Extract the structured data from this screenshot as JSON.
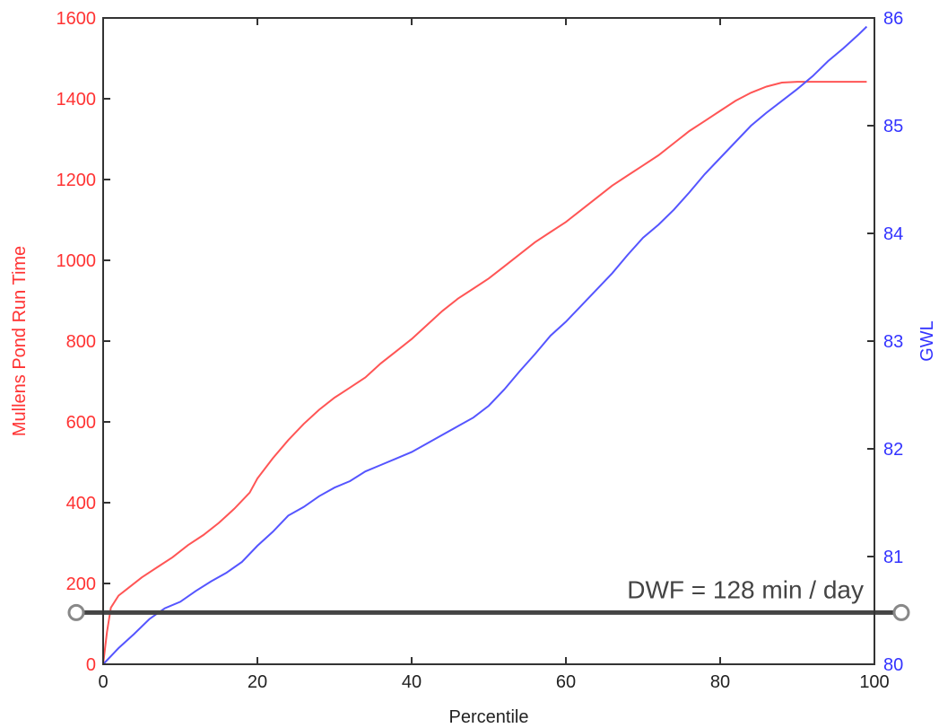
{
  "chart_data": {
    "type": "line",
    "xlabel": "Percentile",
    "ylabel": "Mullens Pond Run Time",
    "y2label": "GWL",
    "xlim": [
      0,
      100
    ],
    "ylim": [
      0,
      1600
    ],
    "y2lim": [
      80,
      86
    ],
    "x_ticks": [
      "0",
      "20",
      "40",
      "60",
      "80",
      "100"
    ],
    "y_ticks": [
      "0",
      "200",
      "400",
      "600",
      "800",
      "1000",
      "1200",
      "1400",
      "1600"
    ],
    "y2_ticks": [
      "80",
      "81",
      "82",
      "83",
      "84",
      "85",
      "86"
    ],
    "grid": false,
    "colors": {
      "left_axis": "#ff3333",
      "right_axis": "#3333ff",
      "frame": "#333333",
      "dwf_line": "#444444"
    },
    "series": [
      {
        "axis": "left",
        "color": "#ff5555",
        "x": [
          0,
          0.5,
          1,
          2,
          3,
          5,
          7,
          9,
          11,
          13,
          15,
          17,
          19,
          20,
          22,
          24,
          26,
          28,
          30,
          32,
          34,
          36,
          38,
          40,
          42,
          44,
          46,
          48,
          50,
          52,
          54,
          56,
          58,
          60,
          62,
          64,
          66,
          68,
          70,
          72,
          74,
          76,
          78,
          80,
          82,
          84,
          86,
          88,
          90,
          92,
          94,
          96,
          98,
          99
        ],
        "values": [
          0,
          80,
          140,
          170,
          185,
          215,
          240,
          265,
          295,
          320,
          350,
          385,
          425,
          460,
          510,
          555,
          595,
          630,
          660,
          685,
          710,
          745,
          775,
          805,
          840,
          875,
          905,
          930,
          955,
          985,
          1015,
          1045,
          1070,
          1095,
          1125,
          1155,
          1185,
          1210,
          1235,
          1260,
          1290,
          1320,
          1345,
          1370,
          1395,
          1415,
          1430,
          1440,
          1442,
          1442,
          1442,
          1442,
          1442,
          1442
        ]
      },
      {
        "axis": "right",
        "color": "#5555ff",
        "x": [
          0,
          2,
          4,
          6,
          8,
          10,
          12,
          14,
          16,
          18,
          20,
          22,
          24,
          26,
          28,
          30,
          32,
          34,
          36,
          38,
          40,
          42,
          44,
          46,
          48,
          50,
          52,
          54,
          56,
          58,
          60,
          62,
          64,
          66,
          68,
          70,
          72,
          74,
          76,
          78,
          80,
          82,
          84,
          86,
          88,
          90,
          92,
          94,
          96,
          98,
          99
        ],
        "values": [
          80.0,
          80.15,
          80.28,
          80.42,
          80.52,
          80.58,
          80.68,
          80.77,
          80.85,
          80.95,
          81.1,
          81.23,
          81.38,
          81.46,
          81.56,
          81.64,
          81.7,
          81.79,
          81.85,
          81.91,
          81.97,
          82.05,
          82.13,
          82.21,
          82.29,
          82.4,
          82.55,
          82.72,
          82.88,
          83.05,
          83.18,
          83.33,
          83.48,
          83.63,
          83.8,
          83.96,
          84.08,
          84.22,
          84.38,
          84.55,
          84.7,
          84.85,
          85.0,
          85.12,
          85.23,
          85.34,
          85.46,
          85.6,
          85.72,
          85.85,
          85.92
        ]
      }
    ],
    "reference_line": {
      "axis": "left",
      "value": 128,
      "label": "DWF = 128 min / day"
    }
  }
}
